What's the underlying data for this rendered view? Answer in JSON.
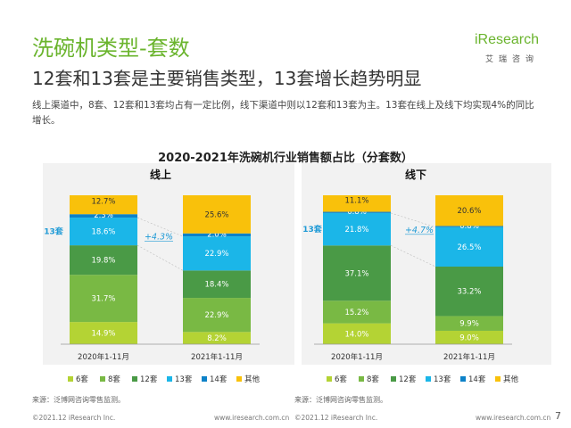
{
  "header": {
    "title": "洗碗机类型-套数",
    "subtitle": "12套和13套是主要销售类型，13套增长趋势明显",
    "description": "线上渠道中，8套、12套和13套均占有一定比例，线下渠道中则以12套和13套为主。13套在线上及线下均实现4%的同比增长。"
  },
  "logo": {
    "brand": "iResearch",
    "tagline": "艾瑞咨询"
  },
  "chart_title": "2020-2021年洗碗机行业销售额占比（分套数）",
  "chart_data": [
    {
      "type": "bar",
      "stacked": true,
      "title": "线上",
      "categories": [
        "2020年1-11月",
        "2021年1-11月"
      ],
      "series": [
        {
          "name": "6套",
          "values": [
            14.9,
            8.2
          ]
        },
        {
          "name": "8套",
          "values": [
            31.7,
            22.9
          ]
        },
        {
          "name": "12套",
          "values": [
            19.8,
            18.4
          ]
        },
        {
          "name": "13套",
          "values": [
            18.6,
            22.9
          ]
        },
        {
          "name": "14套",
          "values": [
            2.3,
            2.0
          ]
        },
        {
          "name": "其他",
          "values": [
            12.7,
            25.6
          ]
        }
      ],
      "data_labels": [
        [
          "14.9%",
          "31.7%",
          "19.8%",
          "18.6%",
          "2.3%",
          "12.7%"
        ],
        [
          "8.2%",
          "22.9%",
          "18.4%",
          "22.9%",
          "2.0%",
          "25.6%"
        ]
      ],
      "highlight_label": "13套",
      "growth_label": "+4.3%",
      "ylim": [
        0,
        100
      ]
    },
    {
      "type": "bar",
      "stacked": true,
      "title": "线下",
      "categories": [
        "2020年1-11月",
        "2021年1-11月"
      ],
      "series": [
        {
          "name": "6套",
          "values": [
            14.0,
            9.0
          ]
        },
        {
          "name": "8套",
          "values": [
            15.2,
            9.9
          ]
        },
        {
          "name": "12套",
          "values": [
            37.1,
            33.2
          ]
        },
        {
          "name": "13套",
          "values": [
            21.8,
            26.5
          ]
        },
        {
          "name": "14套",
          "values": [
            0.8,
            0.8
          ]
        },
        {
          "name": "其他",
          "values": [
            11.1,
            20.6
          ]
        }
      ],
      "data_labels": [
        [
          "14.0%",
          "15.2%",
          "37.1%",
          "21.8%",
          "0.8%",
          "11.1%"
        ],
        [
          "9.0%",
          "9.9%",
          "33.2%",
          "26.5%",
          "0.8%",
          "20.6%"
        ]
      ],
      "highlight_label": "13套",
      "growth_label": "+4.7%",
      "ylim": [
        0,
        100
      ]
    }
  ],
  "colors": {
    "6套": "#b4d334",
    "8套": "#79b944",
    "12套": "#4a9a46",
    "13套": "#1bb6e8",
    "14套": "#0d82c8",
    "其他": "#f9c10b",
    "accent_green": "#6ab42d",
    "highlight": "#1f9ad6"
  },
  "source": "来源：泛博网咨询零售监测。",
  "footer": {
    "copyright": "©2021.12 iResearch Inc.",
    "website": "www.iresearch.com.cn"
  },
  "page_number": "7"
}
